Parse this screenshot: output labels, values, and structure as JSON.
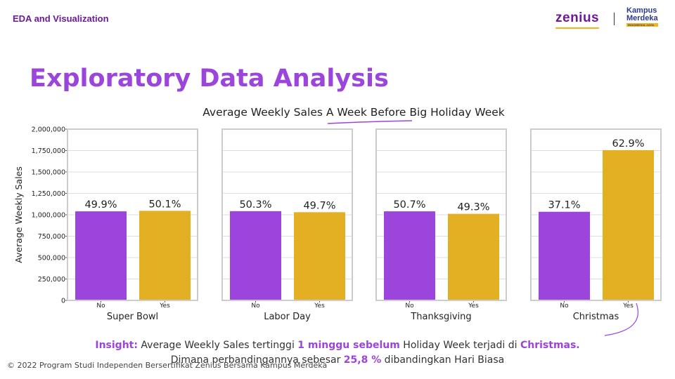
{
  "header": {
    "title": "EDA and Visualization"
  },
  "logos": {
    "zenius": "zenius",
    "kampus_line1": "Kampus",
    "kampus_line2": "Merdeka",
    "kampus_badge": "INDONESIA JAYA"
  },
  "slide": {
    "title": "Exploratory Data Analysis"
  },
  "colors": {
    "no": "#9b45dc",
    "yes": "#e3b024",
    "accent": "#9b45dc",
    "frame": "#cccccc"
  },
  "chart_data": {
    "type": "bar",
    "title": "Average Weekly Sales A Week Before Big Holiday Week",
    "ylabel": "Average Weekly Sales",
    "ylim": [
      0,
      2000000
    ],
    "yticks": [
      0,
      250000,
      500000,
      750000,
      1000000,
      1250000,
      1500000,
      1750000,
      2000000
    ],
    "ytick_labels": [
      "0",
      "250,000",
      "500,000",
      "750,000",
      "1,000,000",
      "1,250,000",
      "1,500,000",
      "1,750,000",
      "2,000,000"
    ],
    "categories": [
      "No",
      "Yes"
    ],
    "grid": true,
    "panels": [
      {
        "name": "Super Bowl",
        "values": [
          1040000,
          1046000
        ],
        "labels": [
          "49.9%",
          "50.1%"
        ]
      },
      {
        "name": "Labor Day",
        "values": [
          1042000,
          1030000
        ],
        "labels": [
          "50.3%",
          "49.7%"
        ]
      },
      {
        "name": "Thanksgiving",
        "values": [
          1040000,
          1011000
        ],
        "labels": [
          "50.7%",
          "49.3%"
        ]
      },
      {
        "name": "Christmas",
        "values": [
          1035000,
          1755000
        ],
        "labels": [
          "37.1%",
          "62.9%"
        ]
      }
    ]
  },
  "insight": {
    "label": "Insight:",
    "t1": " Average Weekly Sales tertinggi ",
    "h1": "1 minggu sebelum",
    "t2": " Holiday Week terjadi di ",
    "h2": "Christmas.",
    "t3": "Dimana perbandingannya sebesar ",
    "h3": "25,8 %",
    "t4": " dibandingkan Hari Biasa"
  },
  "footer": {
    "copyright": "© 2022 Program Studi Independen Bersertifikat Zenius Bersama Kampus Merdeka"
  }
}
